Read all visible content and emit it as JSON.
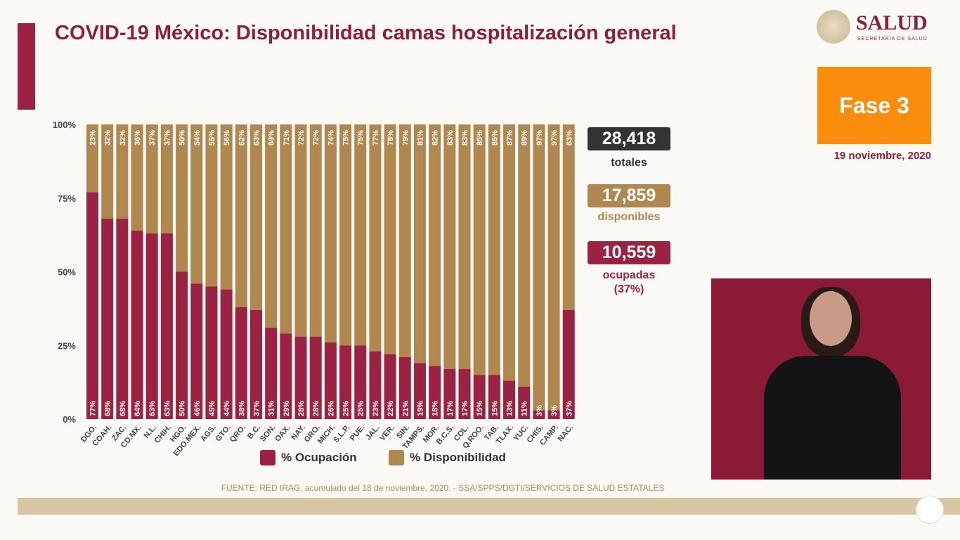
{
  "title": "COVID-19 México: Disponibilidad camas hospitalización general",
  "logo": {
    "name": "SALUD",
    "subtitle": "SECRETARÍA DE SALUD"
  },
  "phase": "Fase 3",
  "date": "19 noviembre, 2020",
  "stats": {
    "total": {
      "value": "28,418",
      "label": "totales",
      "color": "#333333"
    },
    "available": {
      "value": "17,859",
      "label": "disponibles",
      "color": "#b0874f"
    },
    "occupied": {
      "value": "10,559",
      "label": "ocupadas",
      "pct": "(37%)",
      "color": "#9b2242"
    }
  },
  "source": "FUENTE: RED IRAG, acumulado del 18 de noviembre, 2020. -  SSA/SPPS/DGTI/SERVICIOS DE SALUD ESTATALES",
  "chart_data": {
    "type": "bar",
    "stacked": true,
    "categories": [
      "DGO.",
      "COAH.",
      "ZAC.",
      "CD.MX.",
      "N.L.",
      "CHIH.",
      "HGO.",
      "EDO.MEX.",
      "AGS.",
      "GTO.",
      "QRO.",
      "B.C.",
      "SON.",
      "OAX.",
      "NAY.",
      "GRO.",
      "MICH.",
      "S.L.P.",
      "PUE.",
      "JAL.",
      "VER.",
      "SIN.",
      "TAMPS.",
      "MOR.",
      "B.C.S.",
      "COL.",
      "Q.ROO.",
      "TAB.",
      "TLAX.",
      "YUC.",
      "CHIS.",
      "CAMP.",
      "NAC."
    ],
    "series": [
      {
        "name": "% Ocupación",
        "color": "#9b2242",
        "values": [
          77,
          68,
          68,
          64,
          63,
          63,
          50,
          46,
          45,
          44,
          38,
          37,
          31,
          29,
          28,
          28,
          26,
          25,
          25,
          23,
          22,
          21,
          19,
          18,
          17,
          17,
          15,
          15,
          13,
          11,
          3,
          3,
          37
        ]
      },
      {
        "name": "% Disponibilidad",
        "color": "#b0874f",
        "values": [
          23,
          32,
          32,
          36,
          37,
          37,
          50,
          54,
          55,
          56,
          62,
          63,
          69,
          71,
          72,
          72,
          74,
          75,
          75,
          77,
          78,
          79,
          81,
          82,
          83,
          83,
          85,
          85,
          87,
          89,
          97,
          97,
          63
        ]
      }
    ],
    "yticks": [
      "0%",
      "25%",
      "50%",
      "75%",
      "100%"
    ],
    "ylim": [
      0,
      100
    ],
    "legend": "bottom"
  }
}
